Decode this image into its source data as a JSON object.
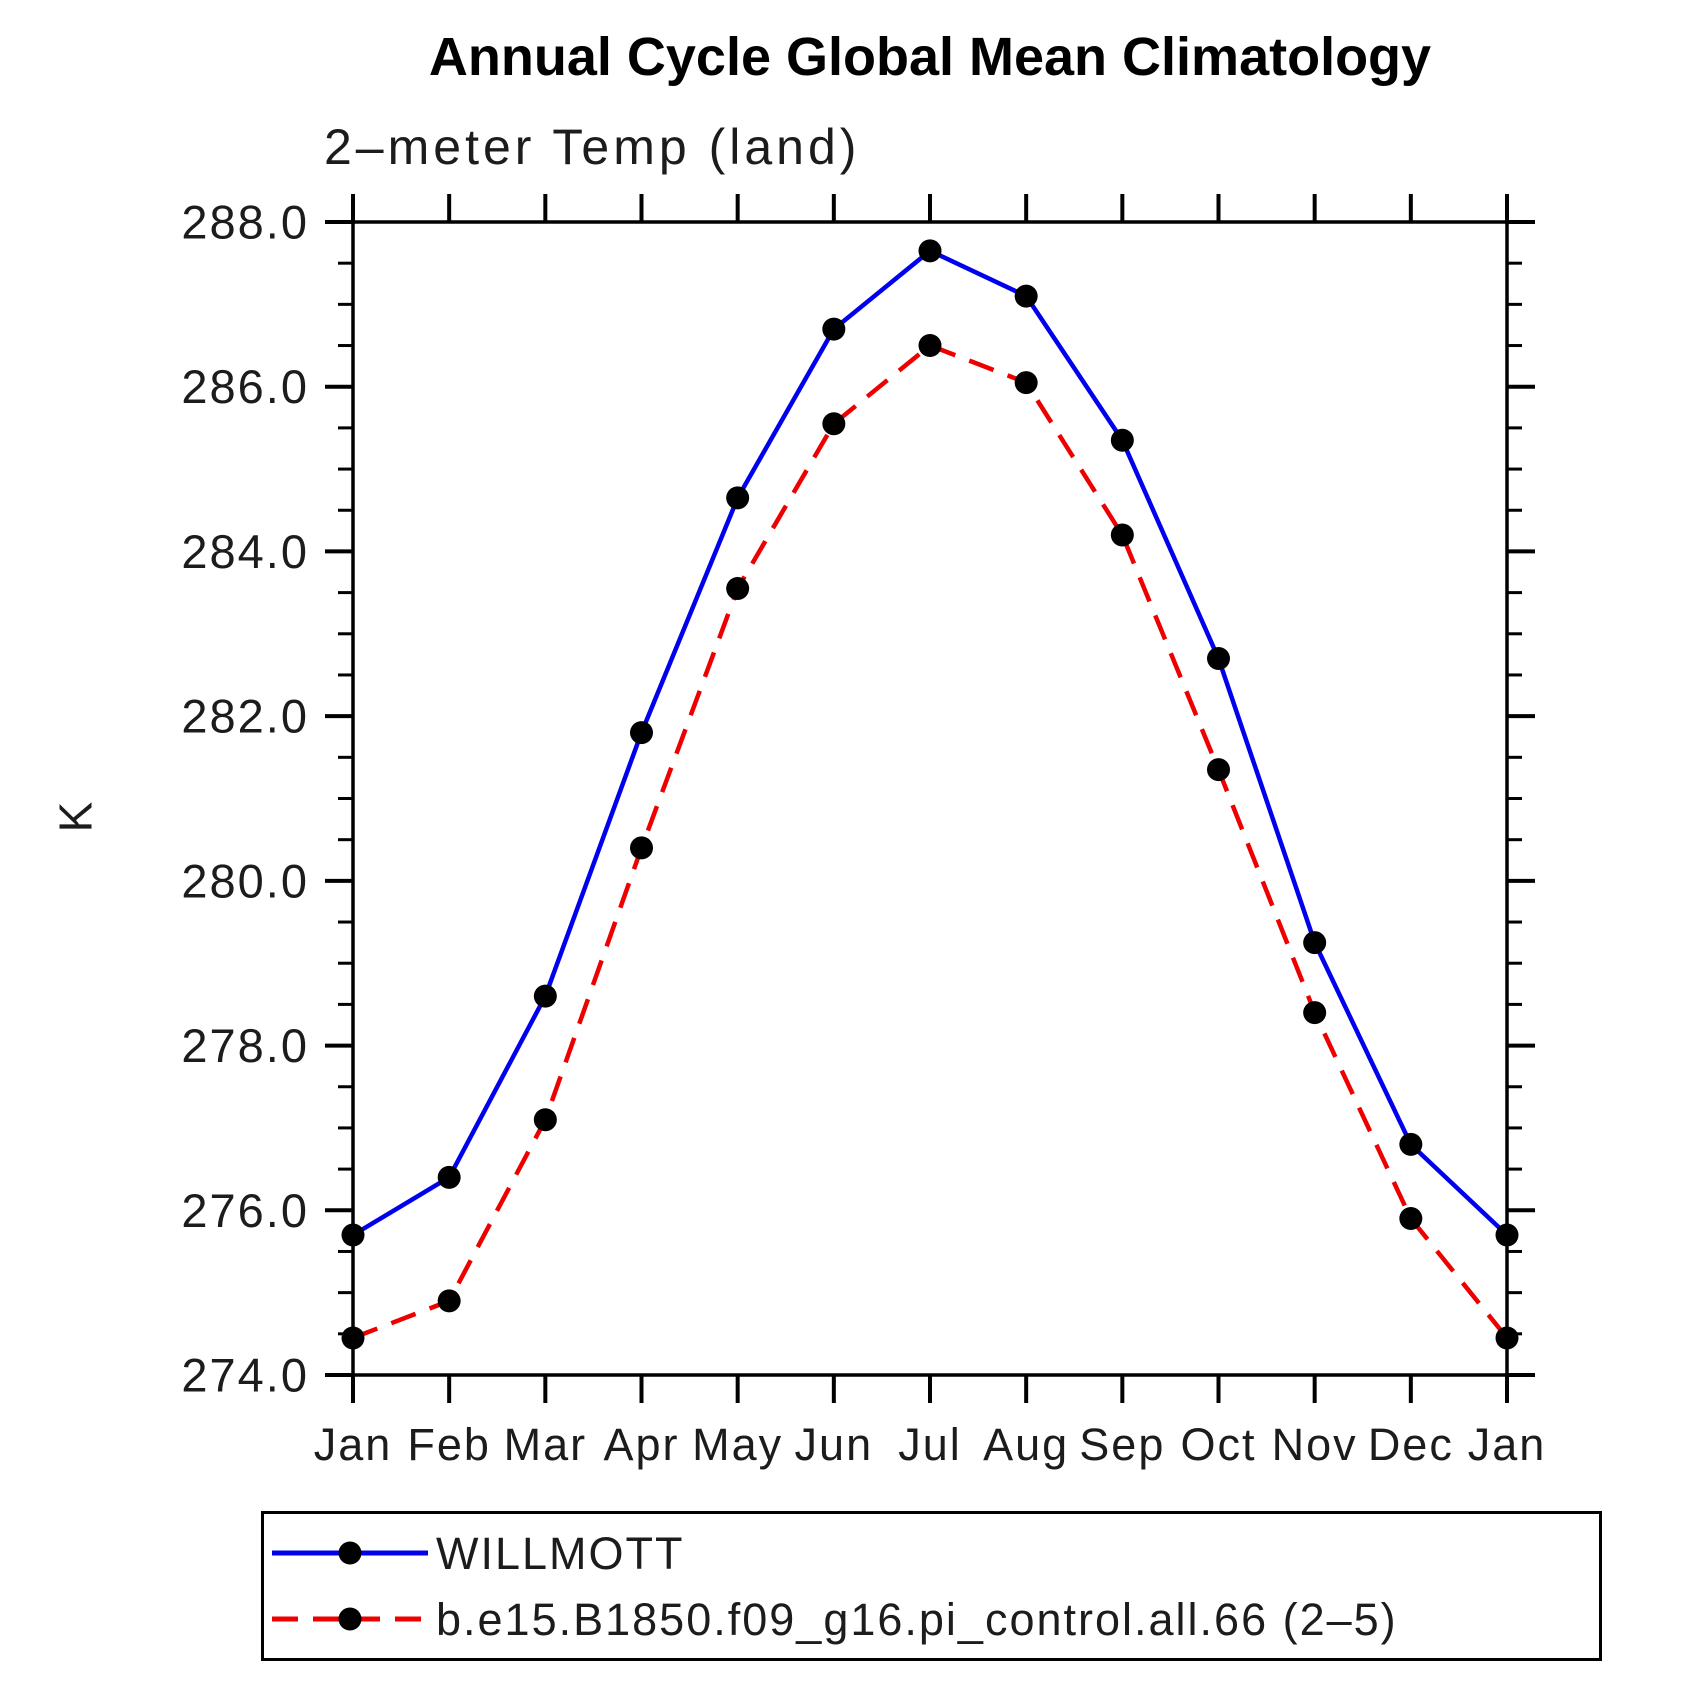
{
  "chart_data": {
    "type": "line",
    "title": "Annual Cycle Global Mean Climatology",
    "subtitle": "2–meter Temp (land)",
    "ylabel": "K",
    "categories": [
      "Jan",
      "Feb",
      "Mar",
      "Apr",
      "May",
      "Jun",
      "Jul",
      "Aug",
      "Sep",
      "Oct",
      "Nov",
      "Dec",
      "Jan"
    ],
    "series": [
      {
        "name": "WILLMOTT",
        "color": "#0000ee",
        "line_style": "solid",
        "marker": "filled-circle",
        "marker_color": "#000000",
        "values": [
          275.7,
          276.4,
          278.6,
          281.8,
          284.65,
          286.7,
          287.65,
          287.1,
          285.35,
          282.7,
          279.25,
          276.8,
          275.7
        ]
      },
      {
        "name": "b.e15.B1850.f09_g16.pi_control.all.66 (2–5)",
        "color": "#ee0000",
        "line_style": "dashed",
        "marker": "filled-circle",
        "marker_color": "#000000",
        "values": [
          274.45,
          274.9,
          277.1,
          280.4,
          283.55,
          285.55,
          286.5,
          286.05,
          284.2,
          281.35,
          278.4,
          275.9,
          274.45
        ]
      }
    ],
    "ylim": [
      274.0,
      288.0
    ],
    "ytick_step": 2.0,
    "ytick_minor_step": 0.5,
    "ytick_labels": [
      "274.0",
      "276.0",
      "278.0",
      "280.0",
      "282.0",
      "284.0",
      "286.0",
      "288.0"
    ],
    "grid": false,
    "legend_position": "below-plot-boxed",
    "axis_color": "#000000"
  }
}
